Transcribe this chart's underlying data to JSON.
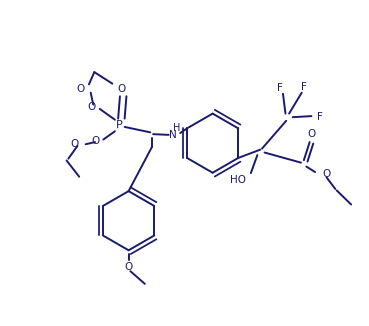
{
  "bg_color": "#ffffff",
  "line_color": "#1a1a6e",
  "line_width": 1.4,
  "font_size": 7.5,
  "figsize": [
    3.69,
    3.26
  ],
  "dpi": 100,
  "xlim": [
    0,
    10
  ],
  "ylim": [
    0,
    9
  ]
}
